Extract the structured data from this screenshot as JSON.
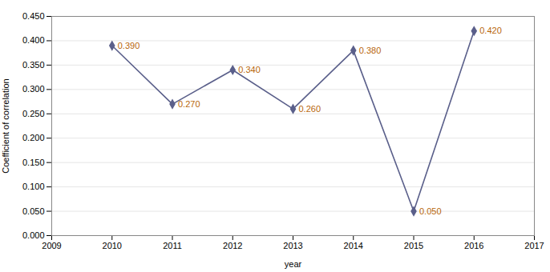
{
  "chart_data": {
    "type": "line",
    "x": [
      2010,
      2011,
      2012,
      2013,
      2014,
      2015,
      2016
    ],
    "values": [
      0.39,
      0.27,
      0.34,
      0.26,
      0.38,
      0.05,
      0.42
    ],
    "value_labels": [
      "0.390",
      "0.270",
      "0.340",
      "0.260",
      "0.380",
      "0.050",
      "0.420"
    ],
    "data_labels": true,
    "color": "#5a5f8a",
    "marker": "diamond",
    "xlabel": "year",
    "ylabel": "Coefficient of correlation",
    "xlim": [
      2009,
      2017
    ],
    "xticks": [
      2009,
      2010,
      2011,
      2012,
      2013,
      2014,
      2015,
      2016,
      2017
    ],
    "ylim": [
      0.0,
      0.45
    ],
    "yticks": [
      {
        "value": 0.0,
        "label": "0.000"
      },
      {
        "value": 0.05,
        "label": "0.050"
      },
      {
        "value": 0.1,
        "label": "0.100"
      },
      {
        "value": 0.15,
        "label": "0.150"
      },
      {
        "value": 0.2,
        "label": "0.200"
      },
      {
        "value": 0.25,
        "label": "0.250"
      },
      {
        "value": 0.3,
        "label": "0.300"
      },
      {
        "value": 0.35,
        "label": "0.350"
      },
      {
        "value": 0.4,
        "label": "0.400"
      },
      {
        "value": 0.45,
        "label": "0.450"
      }
    ],
    "grid": true
  }
}
